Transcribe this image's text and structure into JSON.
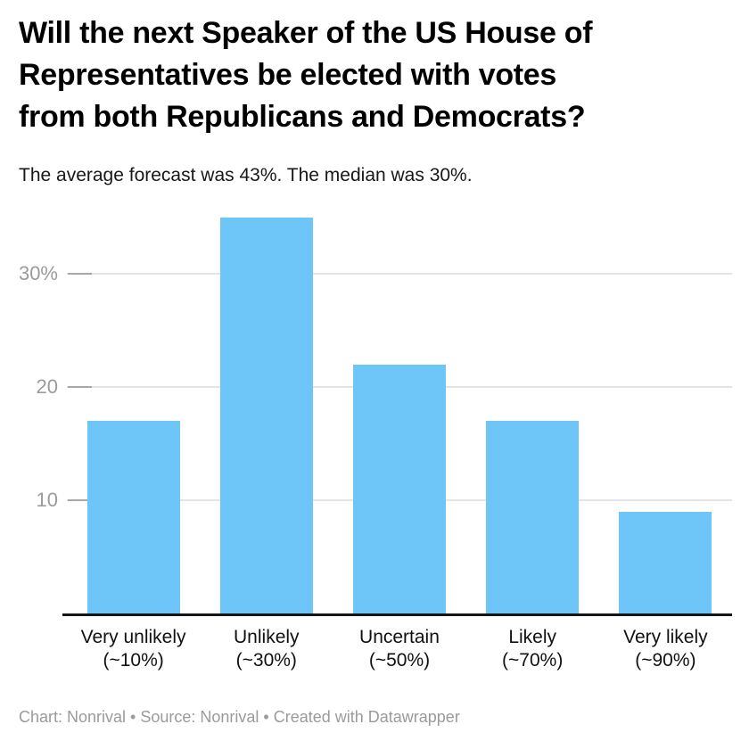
{
  "header": {
    "title": "Will the next Speaker of the US House of Representatives be elected with votes from both Republicans and Democrats?",
    "title_lines": [
      "Will the next Speaker of the US House of",
      "Representatives be elected with votes",
      "from both Republicans and Democrats?"
    ],
    "subtitle": "The average forecast was 43%. The median was 30%."
  },
  "footer": {
    "credits": "Chart: Nonrival • Source: Nonrival • Created with Datawrapper"
  },
  "colors": {
    "bar": "#6ec6f8",
    "gridline": "#e4e4e4",
    "tick_segment": "#a8a8a8",
    "axis_line": "#161616",
    "tick_label": "#9b9b9b",
    "category_label": "#111111",
    "title": "#000000",
    "subtitle": "#18181a",
    "footer": "#9b9b9b",
    "background": "#ffffff"
  },
  "chart_data": {
    "type": "bar",
    "title": "Will the next Speaker of the US House of Representatives be elected with votes from both Republicans and Democrats?",
    "subtitle": "The average forecast was 43%. The median was 30%.",
    "categories": [
      "Very unlikely",
      "Unlikely",
      "Uncertain",
      "Likely",
      "Very likely"
    ],
    "category_subs": [
      "(~10%)",
      "(~30%)",
      "(~50%)",
      "(~70%)",
      "(~90%)"
    ],
    "values": [
      17,
      35,
      22,
      17,
      9
    ],
    "y_ticks": [
      {
        "value": 10,
        "label": "10"
      },
      {
        "value": 20,
        "label": "20"
      },
      {
        "value": 30,
        "label": "30%"
      }
    ],
    "ylim": [
      0,
      35.3
    ],
    "xlabel": "",
    "ylabel": "",
    "grid": true,
    "legend_position": "none",
    "bar_color": "#6ec6f8"
  }
}
